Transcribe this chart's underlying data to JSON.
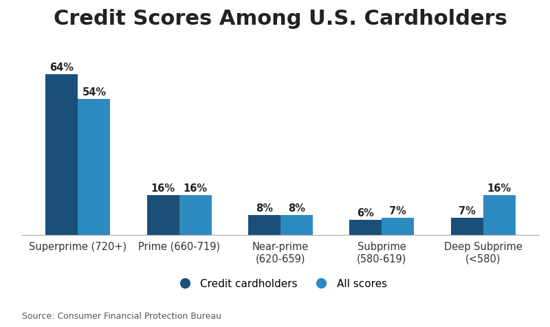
{
  "title": "Credit Scores Among U.S. Cardholders",
  "categories": [
    "Superprime (720+)",
    "Prime (660-719)",
    "Near-prime\n(620-659)",
    "Subprime\n(580-619)",
    "Deep Subprime\n(<580)"
  ],
  "series": [
    {
      "label": "Credit cardholders",
      "values": [
        64,
        16,
        8,
        6,
        7
      ],
      "color": "#1a4f7a"
    },
    {
      "label": "All scores",
      "values": [
        54,
        16,
        8,
        7,
        16
      ],
      "color": "#2d8abf"
    }
  ],
  "bar_width": 0.32,
  "ylim": [
    0,
    78
  ],
  "source_text": "Source: Consumer Financial Protection Bureau",
  "background_color": "#ffffff",
  "title_fontsize": 22,
  "tick_fontsize": 10.5,
  "annotation_fontsize": 10.5,
  "legend_fontsize": 11,
  "source_fontsize": 9
}
